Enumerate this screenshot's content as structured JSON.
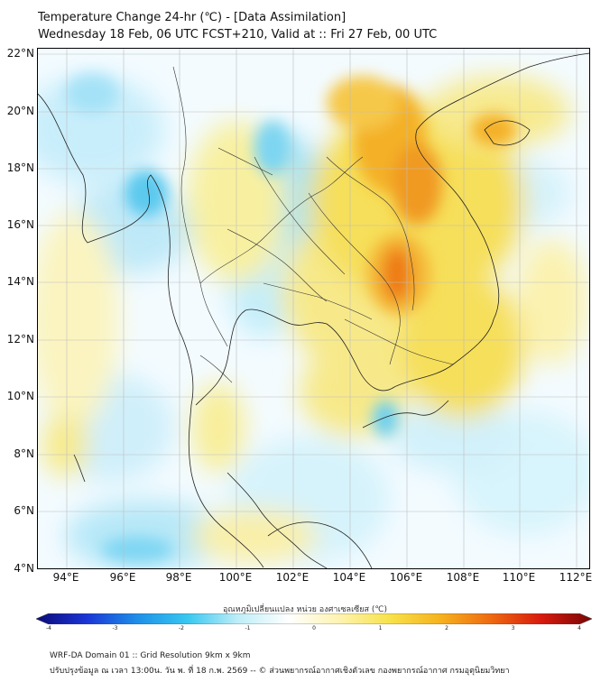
{
  "title_line1": "Temperature Change 24-hr (℃) - [Data Assimilation]",
  "title_line2": "Wednesday 18 Feb, 06 UTC FCST+210, Valid at :: Fri 27 Feb, 00 UTC",
  "lat_labels": [
    "22°N",
    "20°N",
    "18°N",
    "16°N",
    "14°N",
    "12°N",
    "10°N",
    "8°N",
    "6°N",
    "4°N"
  ],
  "lon_labels": [
    "94°E",
    "96°E",
    "98°E",
    "100°E",
    "102°E",
    "104°E",
    "106°E",
    "108°E",
    "110°E",
    "112°E"
  ],
  "colorbar": {
    "title": "อุณหภูมิเปลี่ยนแปลง หน่วย องศาเซลเซียส (℃)",
    "range": [
      -4,
      4
    ],
    "ticks": [
      "-4",
      "-3",
      "-2",
      "-1",
      "0",
      "1",
      "2",
      "3",
      "4"
    ],
    "colors": [
      "#0a0a78",
      "#1b35d6",
      "#1e8fe8",
      "#38c8f0",
      "#bfeef8",
      "#ffffff",
      "#fff3b0",
      "#f7e24a",
      "#f6b21e",
      "#ee6a10",
      "#d81a0e",
      "#780606"
    ]
  },
  "footer_line1": "WRF-DA Domain 01 :: Grid Resolution 9km x 9km",
  "footer_line2": "ปรับปรุงข้อมูล ณ เวลา 13:00น. วัน พ. ที่ 18 ก.พ. 2569 -- © ส่วนพยากรณ์อากาศเชิงตัวเลข กองพยากรณ์อากาศ กรมอุตุนิยมวิทยา"
}
